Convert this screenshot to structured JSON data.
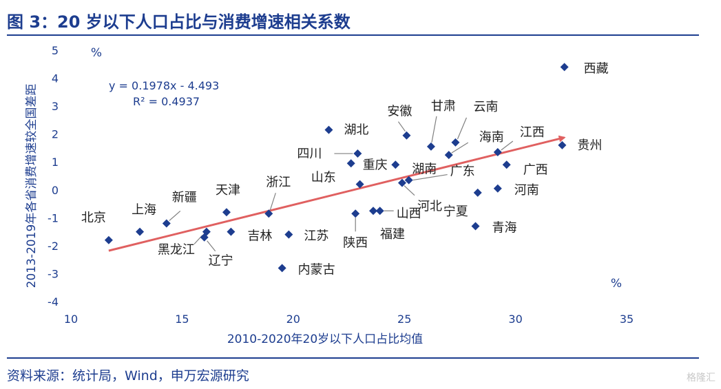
{
  "page": {
    "title": "图 3：20 岁以下人口占比与消费增速相关系数",
    "source": "资料来源：统计局，Wind，申万宏源研究",
    "watermark": "格隆汇"
  },
  "colors": {
    "title": "#1d3d8f",
    "marker": "#1d3d8f",
    "trend": "#e06060",
    "leader": "#7f7f7f"
  },
  "chart_data": {
    "type": "scatter",
    "xlabel": "2010-2020年20岁以下人口占比均值",
    "ylabel": "2013-2019年各省消费增速较全国差距",
    "y_unit": "%",
    "x_unit": "%",
    "xlim": [
      10,
      35
    ],
    "ylim": [
      -4,
      5
    ],
    "xticks": [
      10,
      15,
      20,
      25,
      30,
      35
    ],
    "yticks": [
      -4,
      -3,
      -2,
      -1,
      0,
      1,
      2,
      3,
      4,
      5
    ],
    "grid": false,
    "equation": "y = 0.1978x - 4.493",
    "r_squared": "R² = 0.4937",
    "trend": {
      "slope": 0.1978,
      "intercept": -4.493,
      "x_start": 11.7,
      "x_end": 32.2
    },
    "points": [
      {
        "name": "北京",
        "x": 11.7,
        "y": -1.8
      },
      {
        "name": "上海",
        "x": 13.1,
        "y": -1.5
      },
      {
        "name": "新疆",
        "x": 14.3,
        "y": -1.2
      },
      {
        "name": "黑龙江",
        "x": 16.1,
        "y": -1.5
      },
      {
        "name": "辽宁",
        "x": 16.0,
        "y": -1.7
      },
      {
        "name": "天津",
        "x": 17.0,
        "y": -0.8
      },
      {
        "name": "吉林",
        "x": 17.2,
        "y": -1.5
      },
      {
        "name": "浙江",
        "x": 18.9,
        "y": -0.85
      },
      {
        "name": "内蒙古",
        "x": 19.5,
        "y": -2.8
      },
      {
        "name": "江苏",
        "x": 19.8,
        "y": -1.6
      },
      {
        "name": "湖北",
        "x": 21.6,
        "y": 2.15
      },
      {
        "name": "四川",
        "x": 22.9,
        "y": 1.3
      },
      {
        "name": "山东",
        "x": 22.6,
        "y": 0.95
      },
      {
        "name": "重庆",
        "x": 23.0,
        "y": 0.2
      },
      {
        "name": "陕西",
        "x": 22.8,
        "y": -0.85
      },
      {
        "name": "福建",
        "x": 23.6,
        "y": -0.75
      },
      {
        "name": "山西",
        "x": 23.9,
        "y": -0.75
      },
      {
        "name": "安徽",
        "x": 25.1,
        "y": 1.95
      },
      {
        "name": "湖南",
        "x": 24.6,
        "y": 0.9
      },
      {
        "name": "河北",
        "x": 24.9,
        "y": 0.25
      },
      {
        "name": "广东",
        "x": 25.2,
        "y": 0.35
      },
      {
        "name": "甘肃",
        "x": 26.2,
        "y": 1.55
      },
      {
        "name": "云南",
        "x": 27.3,
        "y": 1.7
      },
      {
        "name": "海南",
        "x": 27.0,
        "y": 1.25
      },
      {
        "name": "宁夏",
        "x": 28.3,
        "y": -0.1
      },
      {
        "name": "青海",
        "x": 28.2,
        "y": -1.3
      },
      {
        "name": "江西",
        "x": 29.2,
        "y": 1.35
      },
      {
        "name": "广西",
        "x": 29.6,
        "y": 0.9
      },
      {
        "name": "河南",
        "x": 29.2,
        "y": 0.05
      },
      {
        "name": "贵州",
        "x": 32.1,
        "y": 1.6
      },
      {
        "name": "西藏",
        "x": 32.2,
        "y": 4.4
      }
    ]
  }
}
